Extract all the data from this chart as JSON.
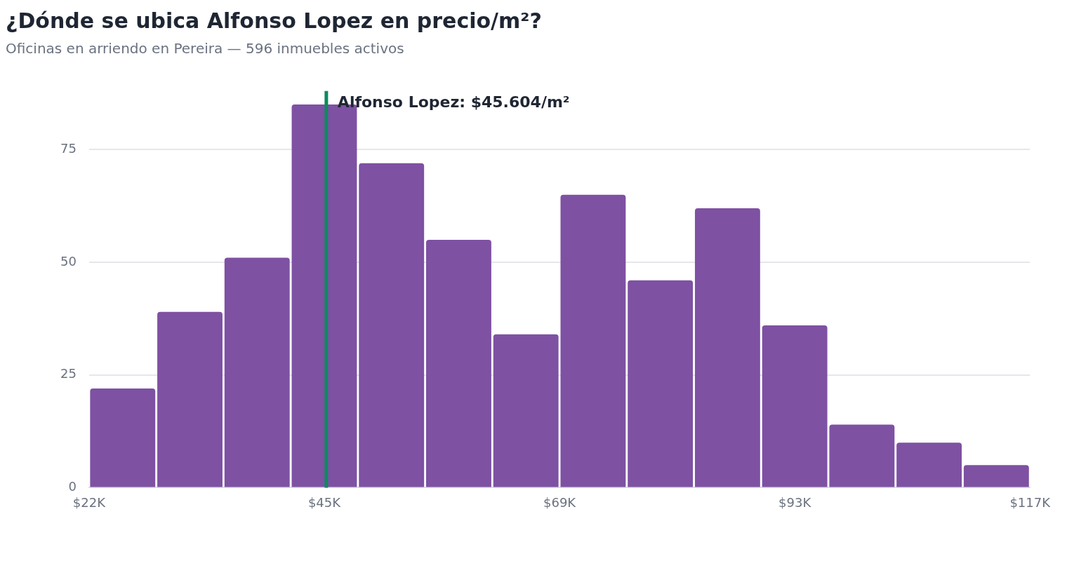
{
  "chart_data": {
    "type": "histogram",
    "title": "¿Dónde se ubica Alfonso Lopez en precio/m²?",
    "subtitle": "Oficinas en arriendo en Pereira — 596 inmuebles activos",
    "bins": [
      21.6,
      28.4,
      35.2,
      42,
      48.8,
      55.6,
      62.4,
      69.2,
      76,
      82.8,
      89.6,
      96.4,
      103.2,
      110,
      116.8
    ],
    "values": [
      22,
      39,
      51,
      85,
      72,
      55,
      34,
      65,
      46,
      62,
      36,
      14,
      10,
      5
    ],
    "color": "#7e51a3",
    "xlim": [
      21.6,
      116.8
    ],
    "xticks": [
      {
        "value": 21.6,
        "label": "$22K"
      },
      {
        "value": 45.4,
        "label": "$45K"
      },
      {
        "value": 69.2,
        "label": "$69K"
      },
      {
        "value": 93,
        "label": "$93K"
      },
      {
        "value": 116.8,
        "label": "$117K"
      }
    ],
    "ylim": [
      0,
      88
    ],
    "yticks": [
      0,
      25,
      50,
      75
    ],
    "grid": "y",
    "legend": false,
    "ref_lines": [
      {
        "axis": "x",
        "value": 45.604,
        "label": "Alfonso Lopez: $45.604/m²",
        "color": "#0e8a5f"
      }
    ]
  }
}
